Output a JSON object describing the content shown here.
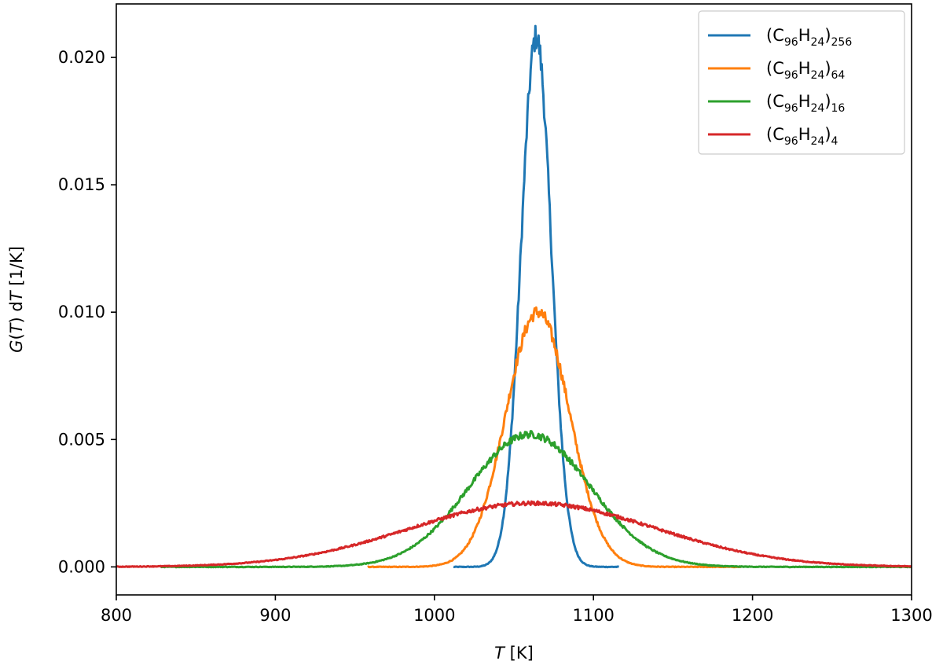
{
  "chart_data": {
    "type": "line",
    "xlabel": {
      "var": "T",
      "rest": " [K]"
    },
    "ylabel": {
      "g": "G",
      "p1": "(",
      "t": "T",
      "p2": ") d",
      "t2": "T",
      "rest": " [1/K]"
    },
    "xlim": [
      800,
      1300
    ],
    "ylim": [
      -0.0011,
      0.0221
    ],
    "xticks": [
      "800",
      "900",
      "1000",
      "1100",
      "1200",
      "1300"
    ],
    "yticks": [
      "0.000",
      "0.005",
      "0.010",
      "0.015",
      "0.020"
    ],
    "grid": false,
    "legend_position": "top-right",
    "series": [
      {
        "name": "(C96H24)256",
        "legend": {
          "open": "(C",
          "s1": "96",
          "mid": "H",
          "s2": "24",
          "close": ")",
          "s3": "256"
        },
        "color": "#1f77b4",
        "x_range": [
          1012,
          1116
        ],
        "mean": 1064,
        "sigma": 9.5,
        "peak": 0.0208
      },
      {
        "name": "(C96H24)64",
        "legend": {
          "open": "(C",
          "s1": "96",
          "mid": "H",
          "s2": "24",
          "close": ")",
          "s3": "64"
        },
        "color": "#ff7f0e",
        "x_range": [
          958,
          1193
        ],
        "mean": 1065,
        "sigma": 20,
        "peak": 0.01
      },
      {
        "name": "(C96H24)16",
        "legend": {
          "open": "(C",
          "s1": "96",
          "mid": "H",
          "s2": "24",
          "close": ")",
          "s3": "16"
        },
        "color": "#2ca02c",
        "x_range": [
          828,
          1300
        ],
        "mean": 1060,
        "sigma": 38,
        "peak": 0.0052
      },
      {
        "name": "(C96H24)4",
        "legend": {
          "open": "(C",
          "s1": "96",
          "mid": "H",
          "s2": "24",
          "close": ")",
          "s3": "4"
        },
        "color": "#d62728",
        "x_range": [
          800,
          1300
        ],
        "mean": 1062,
        "sigma": 77,
        "peak": 0.0025
      }
    ]
  }
}
